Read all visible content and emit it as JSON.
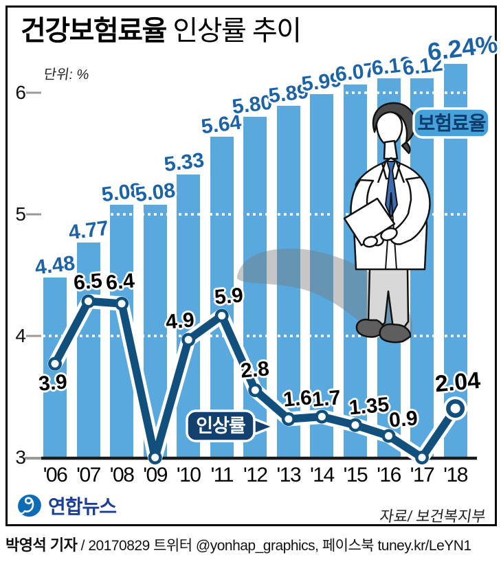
{
  "title": {
    "bold": "건강보험료율",
    "rest": " 인상률 추이"
  },
  "unit_label": "단위: %",
  "badges": {
    "rate": "보험료율",
    "increase": "인상률"
  },
  "source": "자료/ 보건복지부",
  "logo": {
    "name": "연합뉴스"
  },
  "credit": {
    "author": "박영석 기자",
    "rest": " / 20170829 트위터 @yonhap_graphics, 페이스북 tuney.kr/LeYN1"
  },
  "chart_data": {
    "type": "bar",
    "subtype": "bar+line combo",
    "title": "건강보험료율 인상률 추이",
    "unit": "%",
    "categories": [
      "'06",
      "'07",
      "'08",
      "'09",
      "'10",
      "'11",
      "'12",
      "'13",
      "'14",
      "'15",
      "'16",
      "'17",
      "'18"
    ],
    "series": [
      {
        "name": "보험료율",
        "type": "bar",
        "values": [
          4.48,
          4.77,
          5.08,
          5.08,
          5.33,
          5.64,
          5.8,
          5.89,
          5.99,
          6.07,
          6.12,
          6.12,
          6.24
        ],
        "labels": [
          "4.48",
          "4.77",
          "5.08",
          "5.08",
          "5.33",
          "5.64",
          "5.80",
          "5.89",
          "5.99",
          "6.07",
          "6.12",
          "6.12",
          "6.24%"
        ],
        "color": "#5aa9de",
        "label_color": "#1b63a6",
        "axis_range": [
          3,
          6.9
        ]
      },
      {
        "name": "인상률",
        "type": "line",
        "values": [
          3.9,
          6.5,
          6.4,
          0,
          4.9,
          5.9,
          2.8,
          1.6,
          1.7,
          1.35,
          0.9,
          0,
          2.04
        ],
        "labels": [
          "3.9",
          "6.5",
          "6.4",
          "",
          "4.9",
          "5.9",
          "2.8",
          "1.6",
          "1.7",
          "1.35",
          "0.9",
          "",
          "2.04"
        ],
        "color": "#114f7d",
        "axis_range": [
          0,
          7
        ]
      }
    ],
    "yaxis": {
      "ticks": [
        "6",
        "5",
        "4",
        "3"
      ],
      "unit": "%"
    },
    "grid": "dotted white horizontal lines at 4, 5, 6 visible over bars",
    "legend_position": "badges on chart",
    "bar_label_dx": [
      0,
      0,
      0,
      0,
      -6,
      -1,
      -4,
      0,
      0,
      0,
      4,
      1,
      10
    ],
    "line_label_offsets": [
      [
        -3,
        28
      ],
      [
        -1,
        -28
      ],
      [
        -2,
        -31
      ],
      null,
      [
        -12,
        -27
      ],
      [
        10,
        -28
      ],
      [
        0,
        -29
      ],
      [
        13,
        -29
      ],
      [
        7,
        -26
      ],
      [
        20,
        -27
      ],
      [
        21,
        -24
      ],
      null,
      [
        3,
        -38
      ]
    ]
  }
}
